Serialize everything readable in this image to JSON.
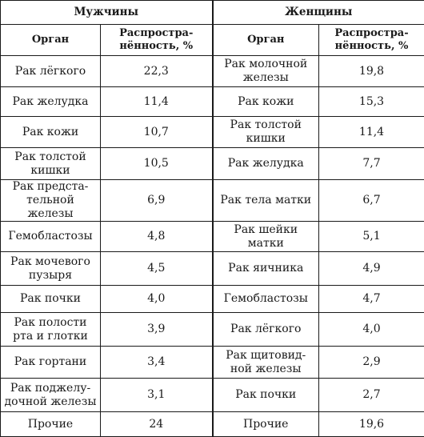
{
  "groups": [
    "Мужчины",
    "Женщины"
  ],
  "columns": {
    "organ": "Орган",
    "prevalence_line1": "Распростра-",
    "prevalence_line2": "нённость, %"
  },
  "rows": [
    {
      "m_organ": [
        "Рак лёгкого"
      ],
      "m_val": "22,3",
      "f_organ": [
        "Рак молочной",
        "железы"
      ],
      "f_val": "19,8"
    },
    {
      "m_organ": [
        "Рак желудка"
      ],
      "m_val": "11,4",
      "f_organ": [
        "Рак кожи"
      ],
      "f_val": "15,3"
    },
    {
      "m_organ": [
        "Рак кожи"
      ],
      "m_val": "10,7",
      "f_organ": [
        "Рак толстой",
        "кишки"
      ],
      "f_val": "11,4"
    },
    {
      "m_organ": [
        "Рак толстой",
        "кишки"
      ],
      "m_val": "10,5",
      "f_organ": [
        "Рак желудка"
      ],
      "f_val": "7,7"
    },
    {
      "m_organ": [
        "Рак предста-",
        "тельной железы"
      ],
      "m_val": "6,9",
      "f_organ": [
        "Рак тела матки"
      ],
      "f_val": "6,7"
    },
    {
      "m_organ": [
        "Гемобластозы"
      ],
      "m_val": "4,8",
      "f_organ": [
        "Рак шейки",
        "матки"
      ],
      "f_val": "5,1"
    },
    {
      "m_organ": [
        "Рак мочевого",
        "пузыря"
      ],
      "m_val": "4,5",
      "f_organ": [
        "Рак яичника"
      ],
      "f_val": "4,9"
    },
    {
      "m_organ": [
        "Рак почки"
      ],
      "m_val": "4,0",
      "f_organ": [
        "Гемобластозы"
      ],
      "f_val": "4,7"
    },
    {
      "m_organ": [
        "Рак полости",
        "рта и глотки"
      ],
      "m_val": "3,9",
      "f_organ": [
        "Рак лёгкого"
      ],
      "f_val": "4,0"
    },
    {
      "m_organ": [
        "Рак гортани"
      ],
      "m_val": "3,4",
      "f_organ": [
        "Рак щитовид-",
        "ной железы"
      ],
      "f_val": "2,9"
    },
    {
      "m_organ": [
        "Рак поджелу-",
        "дочной железы"
      ],
      "m_val": "3,1",
      "f_organ": [
        "Рак почки"
      ],
      "f_val": "2,7"
    },
    {
      "m_organ": [
        "Прочие"
      ],
      "m_val": "24",
      "f_organ": [
        "Прочие"
      ],
      "f_val": "19,6"
    }
  ]
}
